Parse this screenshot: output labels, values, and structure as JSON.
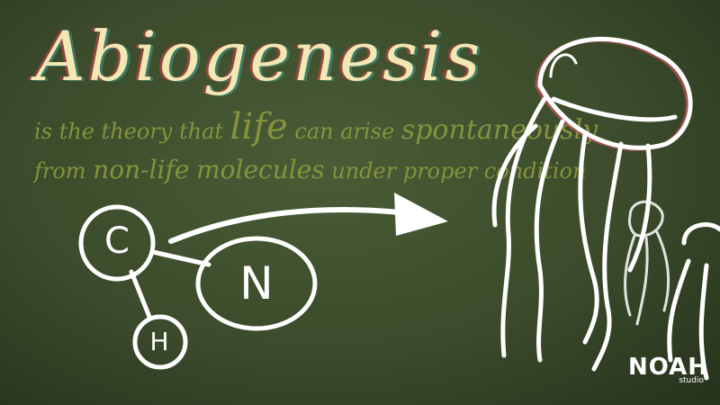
{
  "title": "Abiogenesis",
  "definition": {
    "part1": "is the theory that",
    "emphasis_life": "life",
    "part2": "can arise",
    "emphasis_spont": "spontaneously",
    "part3": "from",
    "emphasis_nonlife": "non-life",
    "emphasis_molecules": "molecules",
    "part4": "under proper condition"
  },
  "molecule": {
    "atoms": [
      "C",
      "N",
      "H"
    ]
  },
  "logo": {
    "name": "NOAH",
    "sub": "studio"
  },
  "colors": {
    "background": "#3b4b2b",
    "title": "#f1e8b4",
    "definition_text": "#8c9a3e",
    "chalk": "#ffffff"
  }
}
